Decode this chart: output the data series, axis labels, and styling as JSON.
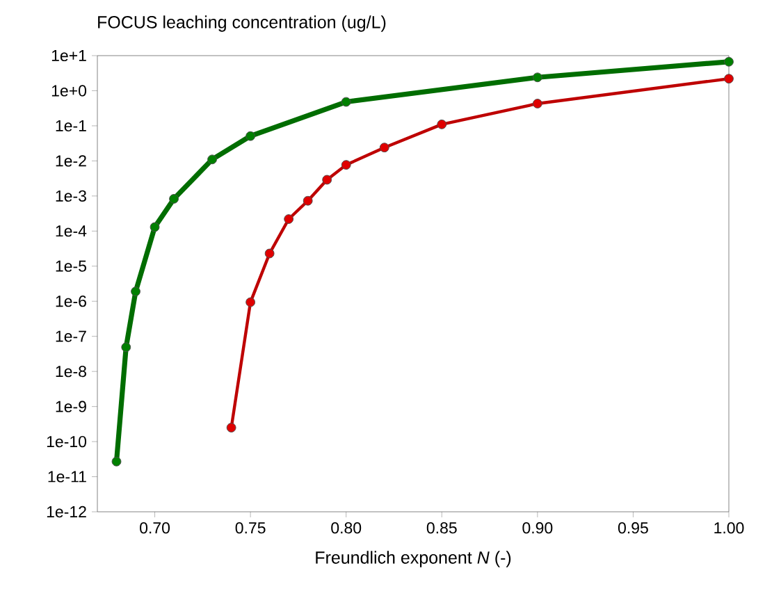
{
  "chart_data": {
    "type": "line",
    "title": "FOCUS leaching concentration (ug/L)",
    "xlabel": "Freundlich exponent *N* (-)",
    "log": "y",
    "marker": "circle",
    "line_style": "solid",
    "xlim": [
      0.67,
      1.0
    ],
    "xticks": [
      {
        "value": 0.7,
        "label": "0.70"
      },
      {
        "value": 0.75,
        "label": "0.75"
      },
      {
        "value": 0.8,
        "label": "0.80"
      },
      {
        "value": 0.85,
        "label": "0.85"
      },
      {
        "value": 0.9,
        "label": "0.90"
      },
      {
        "value": 0.95,
        "label": "0.95"
      },
      {
        "value": 1.0,
        "label": "1.00"
      }
    ],
    "ylim": [
      1e-12,
      10
    ],
    "yticks": [
      {
        "value": 1e-12,
        "label": "1e-12"
      },
      {
        "value": 1e-11,
        "label": "1e-11"
      },
      {
        "value": 1e-10,
        "label": "1e-10"
      },
      {
        "value": 1e-09,
        "label": "1e-9"
      },
      {
        "value": 1e-08,
        "label": "1e-8"
      },
      {
        "value": 1e-07,
        "label": "1e-7"
      },
      {
        "value": 1e-06,
        "label": "1e-6"
      },
      {
        "value": 1e-05,
        "label": "1e-5"
      },
      {
        "value": 0.0001,
        "label": "1e-4"
      },
      {
        "value": 0.001,
        "label": "1e-3"
      },
      {
        "value": 0.01,
        "label": "1e-2"
      },
      {
        "value": 0.1,
        "label": "1e-1"
      },
      {
        "value": 1,
        "label": "1e+0"
      },
      {
        "value": 10,
        "label": "1e+1"
      }
    ],
    "series": [
      {
        "color": "#008000",
        "x": [
          0.68,
          0.685,
          0.69,
          0.7,
          0.71,
          0.73,
          0.75,
          0.8,
          0.9,
          1.0
        ],
        "values": [
          2.7e-11,
          4.9e-08,
          1.9e-06,
          0.00013,
          0.00083,
          0.011,
          0.051,
          0.48,
          2.4,
          6.7
        ]
      },
      {
        "color": "#e00000",
        "x": [
          0.74,
          0.75,
          0.76,
          0.77,
          0.78,
          0.79,
          0.8,
          0.82,
          0.85,
          0.9,
          1.0
        ],
        "values": [
          2.5e-10,
          9.4e-07,
          2.3e-05,
          0.00022,
          0.00073,
          0.0029,
          0.0077,
          0.024,
          0.11,
          0.43,
          2.2
        ]
      }
    ]
  }
}
